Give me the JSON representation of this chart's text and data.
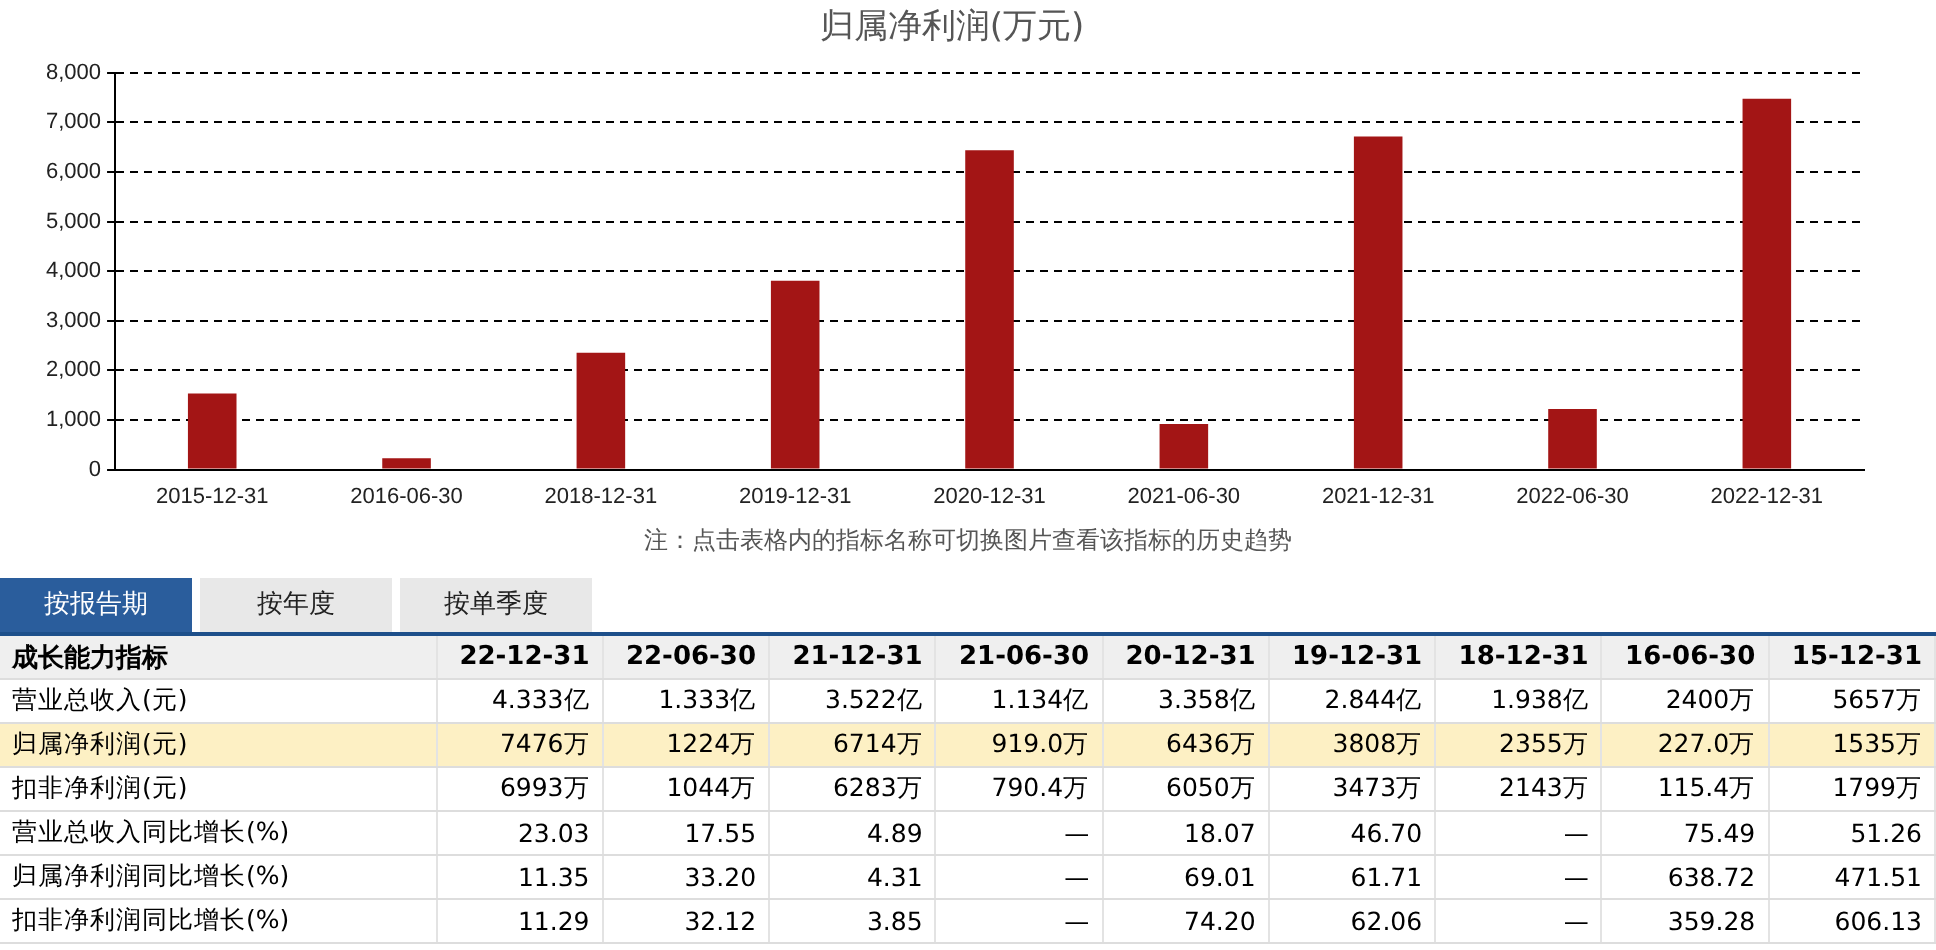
{
  "chart_data": [
    {
      "type": "bar",
      "title": "归属净利润(万元)",
      "categories": [
        "2015-12-31",
        "2016-06-30",
        "2018-12-31",
        "2019-12-31",
        "2020-12-31",
        "2021-06-30",
        "2021-12-31",
        "2022-06-30",
        "2022-12-31"
      ],
      "values": [
        1535,
        227.0,
        2355,
        3808,
        6436,
        919.0,
        6714,
        1224,
        7476
      ],
      "color": "#a31515",
      "ylim": [
        0,
        8000
      ],
      "yticks": [
        0,
        {
          "value": 1000,
          "label": "1,000"
        },
        {
          "value": 2000,
          "label": "2,000"
        },
        {
          "value": 3000,
          "label": "3,000"
        },
        {
          "value": 4000,
          "label": "4,000"
        },
        {
          "value": 5000,
          "label": "5,000"
        },
        {
          "value": 6000,
          "label": "6,000"
        },
        {
          "value": 7000,
          "label": "7,000"
        },
        {
          "value": 8000,
          "label": "8,000"
        }
      ],
      "grid": "y",
      "annotations": [
        "注：点击表格内的指标名称可切换图片查看该指标的历史趋势"
      ]
    },
    {
      "type": "other",
      "title": "成长能力指标",
      "annotations": [
        "按报告期",
        "按年度",
        "按单季度"
      ],
      "categories": [
        "22-12-31",
        "22-06-30",
        "21-12-31",
        "21-06-30",
        "20-12-31",
        "19-12-31",
        "18-12-31",
        "16-06-30",
        "15-12-31"
      ],
      "y_categories": [
        "营业总收入(元)",
        "归属净利润(元)",
        "扣非净利润(元)",
        "营业总收入同比增长(%)",
        "归属净利润同比增长(%)",
        "扣非净利润同比增长(%)"
      ],
      "cell_labels": [
        [
          "4.333亿",
          "1.333亿",
          "3.522亿",
          "1.134亿",
          "3.358亿",
          "2.844亿",
          "1.938亿",
          "2400万",
          "5657万"
        ],
        [
          "7476万",
          "1224万",
          "6714万",
          "919.0万",
          "6436万",
          "3808万",
          "2355万",
          "227.0万",
          "1535万"
        ],
        [
          "6993万",
          "1044万",
          "6283万",
          "790.4万",
          "6050万",
          "3473万",
          "2143万",
          "115.4万",
          "1799万"
        ],
        [
          "23.03",
          "17.55",
          "4.89",
          "—",
          "18.07",
          "46.70",
          "—",
          "75.49",
          "51.26"
        ],
        [
          "11.35",
          "33.20",
          "4.31",
          "—",
          "69.01",
          "61.71",
          "—",
          "638.72",
          "471.51"
        ],
        [
          "11.29",
          "32.12",
          "3.85",
          "—",
          "74.20",
          "62.06",
          "—",
          "359.28",
          "606.13"
        ]
      ]
    }
  ]
}
